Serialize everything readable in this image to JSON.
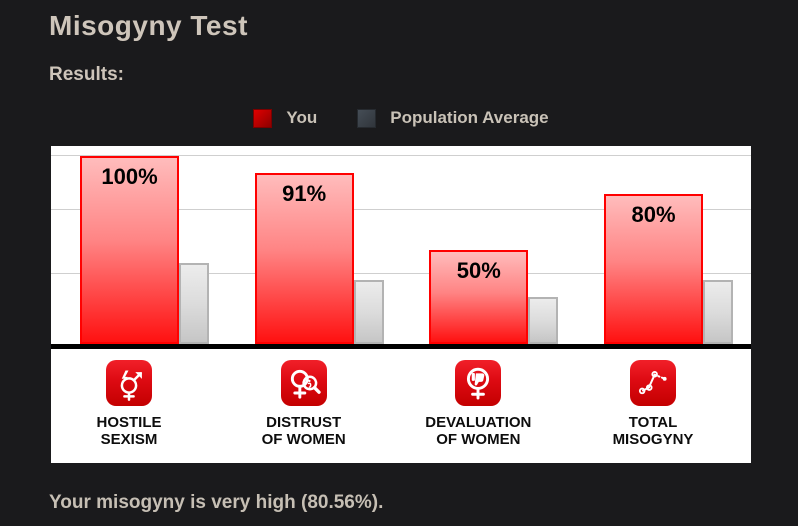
{
  "header": {
    "title": "Misogyny Test",
    "results_label": "Results:"
  },
  "legend": {
    "you": "You",
    "population": "Population Average"
  },
  "chart_data": {
    "type": "bar",
    "title": "Misogyny Test Results",
    "categories": [
      "Hostile Sexism",
      "Distrust of Women",
      "Devaluation of Women",
      "Total Misogyny"
    ],
    "category_display": [
      "HOSTILE\nSEXISM",
      "DISTRUST\nOF WOMEN",
      "DEVALUATION\nOF WOMEN",
      "TOTAL\nMISOGYNY"
    ],
    "series": [
      {
        "name": "You",
        "values": [
          100,
          91,
          50,
          80
        ],
        "color": "#ff1111"
      },
      {
        "name": "Population Average",
        "values": [
          43,
          34,
          25,
          34
        ],
        "color": "#d9d9d9"
      }
    ],
    "value_labels": [
      "100%",
      "91%",
      "50%",
      "80%"
    ],
    "ylim": [
      0,
      100
    ],
    "grid": true,
    "legend_position": "top"
  },
  "icons": [
    "gender-symbol-lightning",
    "female-symbol-magnifier",
    "female-symbol-thumbs-down",
    "trend-line-dots"
  ],
  "summary": {
    "text": "Your misogyny is very high (80.56%)."
  },
  "colors": {
    "page_bg": "#1a1a1c",
    "heading_text": "#cec5ba",
    "accent_red": "#e30613",
    "bar_you_border": "#ff0000",
    "bar_avg_border": "#b3b3b3",
    "panel_bg": "#ffffff",
    "gridline": "#cfcfcf",
    "axis": "#000000"
  }
}
